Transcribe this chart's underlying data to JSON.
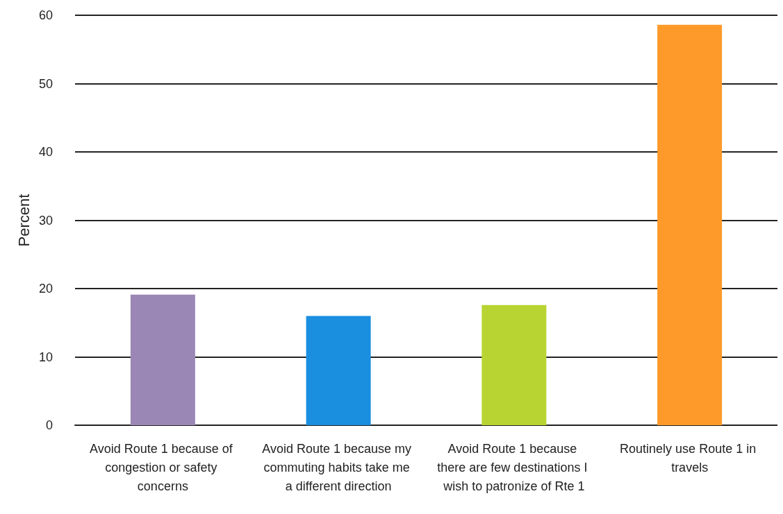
{
  "chart_data": {
    "type": "bar",
    "ylabel": "Percent",
    "categories": [
      "Avoid Route 1 because of congestion or safety concerns",
      "Avoid Route 1 because my commuting habits take me a different direction",
      "Avoid Route 1 because there are few destinations I wish to patronize of Rte 1",
      "Routinely use Route 1 in travels"
    ],
    "values": [
      19.1,
      16.0,
      17.6,
      58.6
    ],
    "colors": [
      "#9b87b5",
      "#1a8fe0",
      "#b8d432",
      "#fd9a2a"
    ],
    "ylim": [
      0,
      60
    ],
    "yticks": [
      0,
      10,
      20,
      30,
      40,
      50,
      60
    ],
    "grid": "y"
  }
}
